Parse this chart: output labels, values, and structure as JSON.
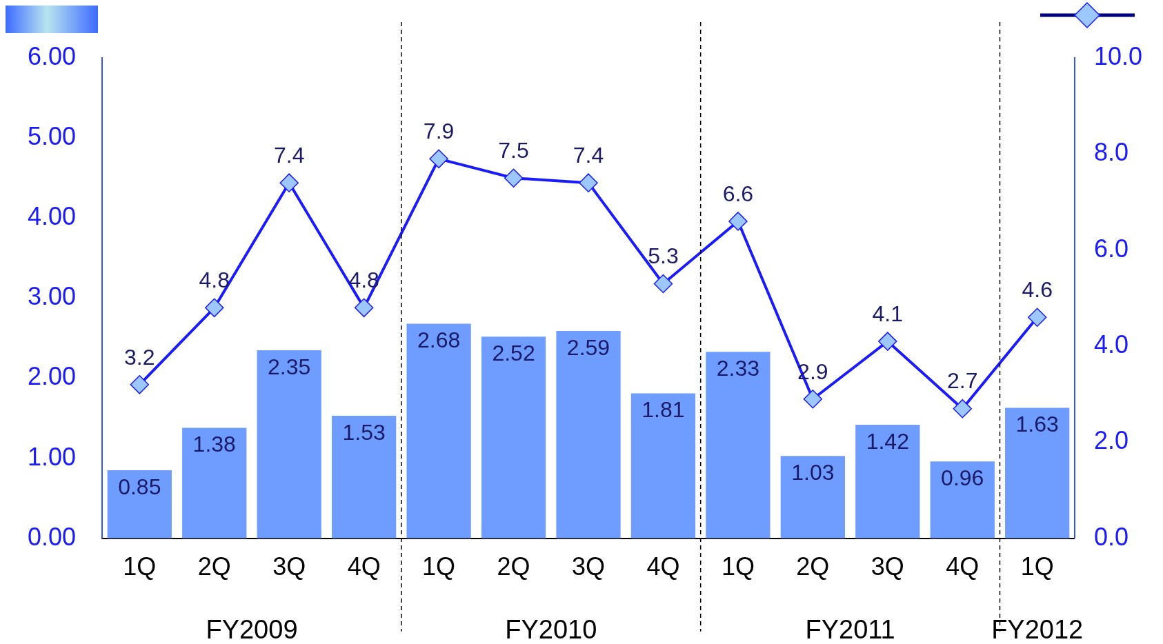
{
  "chart_data": {
    "type": "bar",
    "categories": [
      "1Q",
      "2Q",
      "3Q",
      "4Q",
      "1Q",
      "2Q",
      "3Q",
      "4Q",
      "1Q",
      "2Q",
      "3Q",
      "4Q",
      "1Q"
    ],
    "series": [
      {
        "color": "#6e9cff",
        "values": [
          0.85,
          1.38,
          2.35,
          1.53,
          2.68,
          2.52,
          2.59,
          1.81,
          2.33,
          1.03,
          1.42,
          0.96,
          1.63
        ]
      },
      {
        "type": "line",
        "axis": "y2",
        "color": "#1a1aff",
        "values": [
          3.2,
          4.8,
          7.4,
          4.8,
          7.9,
          7.5,
          7.4,
          5.3,
          6.6,
          2.9,
          4.1,
          2.7,
          4.6
        ]
      }
    ],
    "ylim": [
      0,
      6
    ],
    "yticks": [
      {
        "value": 0,
        "label": "0.00"
      },
      {
        "value": 1,
        "label": "1.00"
      },
      {
        "value": 2,
        "label": "2.00"
      },
      {
        "value": 3,
        "label": "3.00"
      },
      {
        "value": 4,
        "label": "4.00"
      },
      {
        "value": 5,
        "label": "5.00"
      },
      {
        "value": 6,
        "label": "6.00"
      }
    ],
    "y2lim": [
      0,
      10
    ],
    "y2ticks": [
      {
        "value": 0,
        "label": "0.0"
      },
      {
        "value": 2,
        "label": "2.0"
      },
      {
        "value": 4,
        "label": "4.0"
      },
      {
        "value": 6,
        "label": "6.0"
      },
      {
        "value": 8,
        "label": "8.0"
      },
      {
        "value": 10,
        "label": "10.0"
      }
    ],
    "annotations": [
      "FY2009",
      "FY2010",
      "FY2011",
      "FY2012"
    ],
    "data_labels": true,
    "grid": false,
    "marker": "diamond",
    "line_style": "solid"
  }
}
